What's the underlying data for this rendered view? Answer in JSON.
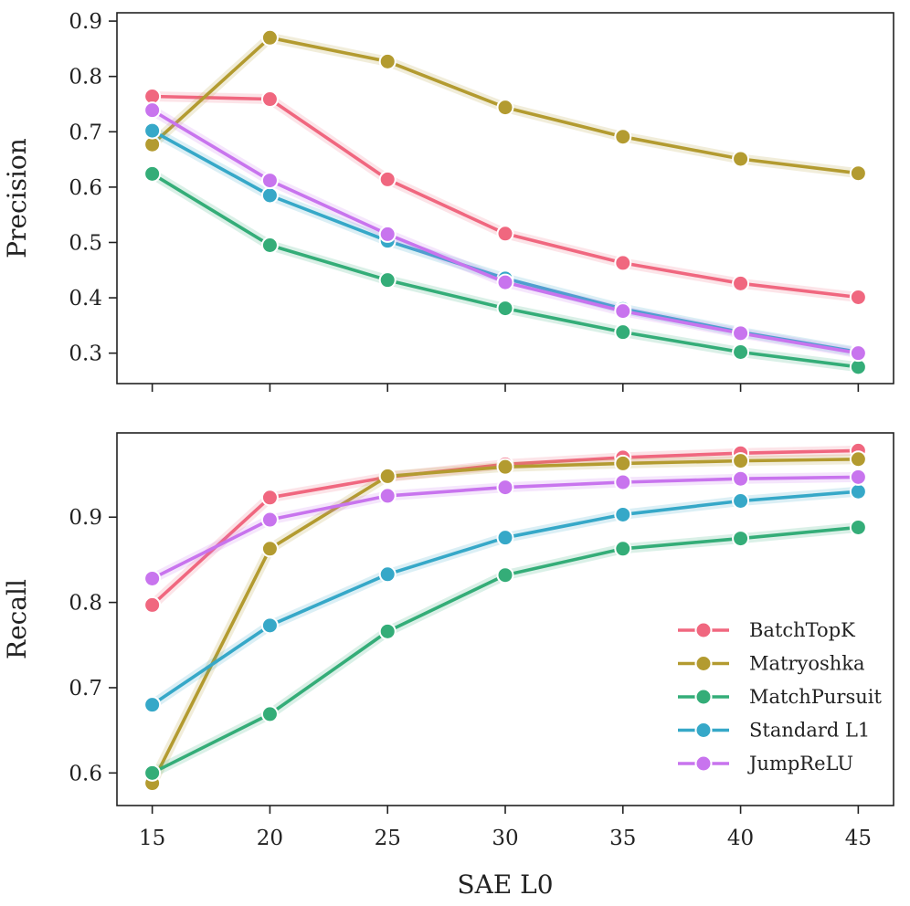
{
  "chart_data": [
    {
      "type": "line",
      "title": "",
      "xlabel": "",
      "ylabel": "Precision",
      "x": [
        15,
        20,
        25,
        30,
        35,
        40,
        45
      ],
      "xlim": [
        13.5,
        46.5
      ],
      "ylim": [
        0.245,
        0.915
      ],
      "yticks": [
        0.3,
        0.4,
        0.5,
        0.6,
        0.7,
        0.8,
        0.9
      ],
      "ytick_labels": [
        "0.3",
        "0.4",
        "0.5",
        "0.6",
        "0.7",
        "0.8",
        "0.9"
      ],
      "grid": false,
      "series": [
        {
          "name": "BatchTopK",
          "color": "#f0677f",
          "values": [
            0.764,
            0.759,
            0.614,
            0.516,
            0.463,
            0.426,
            0.401
          ]
        },
        {
          "name": "Matryoshka",
          "color": "#b39b30",
          "values": [
            0.677,
            0.87,
            0.827,
            0.744,
            0.691,
            0.651,
            0.625
          ]
        },
        {
          "name": "MatchPursuit",
          "color": "#34ad78",
          "values": [
            0.624,
            0.495,
            0.432,
            0.381,
            0.338,
            0.302,
            0.275
          ]
        },
        {
          "name": "Standard L1",
          "color": "#36a8c8",
          "values": [
            0.702,
            0.585,
            0.503,
            0.435,
            0.38,
            0.338,
            0.302
          ]
        },
        {
          "name": "JumpReLU",
          "color": "#c874ee",
          "values": [
            0.739,
            0.612,
            0.515,
            0.428,
            0.376,
            0.336,
            0.3
          ]
        }
      ]
    },
    {
      "type": "line",
      "title": "",
      "xlabel": "SAE L0",
      "ylabel": "Recall",
      "x": [
        15,
        20,
        25,
        30,
        35,
        40,
        45
      ],
      "xlim": [
        13.5,
        46.5
      ],
      "ylim": [
        0.5618,
        0.9988
      ],
      "xticks": [
        15,
        20,
        25,
        30,
        35,
        40,
        45
      ],
      "xtick_labels": [
        "15",
        "20",
        "25",
        "30",
        "35",
        "40",
        "45"
      ],
      "yticks": [
        0.6,
        0.7,
        0.8,
        0.9
      ],
      "ytick_labels": [
        "0.6",
        "0.7",
        "0.8",
        "0.9"
      ],
      "grid": false,
      "legend_position": "lower-right",
      "series": [
        {
          "name": "BatchTopK",
          "color": "#f0677f",
          "values": [
            0.797,
            0.923,
            0.947,
            0.962,
            0.97,
            0.975,
            0.978
          ]
        },
        {
          "name": "Matryoshka",
          "color": "#b39b30",
          "values": [
            0.588,
            0.863,
            0.948,
            0.959,
            0.963,
            0.966,
            0.968
          ]
        },
        {
          "name": "MatchPursuit",
          "color": "#34ad78",
          "values": [
            0.6,
            0.669,
            0.766,
            0.832,
            0.863,
            0.875,
            0.888
          ]
        },
        {
          "name": "Standard L1",
          "color": "#36a8c8",
          "values": [
            0.68,
            0.773,
            0.833,
            0.876,
            0.903,
            0.919,
            0.93
          ]
        },
        {
          "name": "JumpReLU",
          "color": "#c874ee",
          "values": [
            0.828,
            0.897,
            0.925,
            0.935,
            0.941,
            0.945,
            0.947
          ]
        }
      ]
    }
  ]
}
